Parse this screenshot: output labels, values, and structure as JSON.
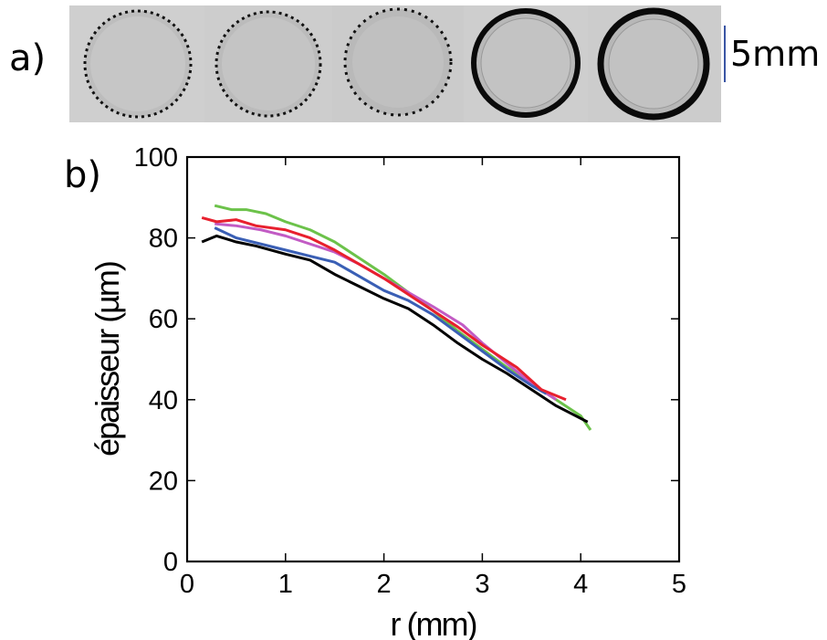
{
  "panel_a": {
    "label": "a)",
    "scale_text": "5mm",
    "scale_color": "#3a55a4"
  },
  "panel_b": {
    "label": "b)"
  },
  "colors": {
    "black": "#000000",
    "blue": "#3a5fb5",
    "magenta": "#c25bc4",
    "red": "#e8202e",
    "green": "#6cc24a"
  },
  "chart_data": {
    "type": "line",
    "xlabel": "r (mm)",
    "ylabel": "épaisseur (µm)",
    "xlim": [
      0,
      5
    ],
    "ylim": [
      0,
      100
    ],
    "xticks": [
      0,
      1,
      2,
      3,
      4,
      5
    ],
    "yticks": [
      0,
      20,
      40,
      60,
      80,
      100
    ],
    "grid": false,
    "series": [
      {
        "color": "#6cc24a",
        "x": [
          0.28,
          0.45,
          0.6,
          0.8,
          1.0,
          1.25,
          1.5,
          1.75,
          2.0,
          2.25,
          2.5,
          2.75,
          3.0,
          3.25,
          3.5,
          3.75,
          4.0,
          4.1
        ],
        "y": [
          88,
          87,
          87,
          86,
          84,
          82,
          79,
          75,
          71,
          66.5,
          62,
          57,
          52.5,
          48,
          44,
          40,
          36,
          32.5
        ]
      },
      {
        "color": "#c25bc4",
        "x": [
          0.28,
          0.5,
          0.75,
          1.0,
          1.25,
          1.5,
          1.75,
          2.0,
          2.25,
          2.5,
          2.8,
          3.0,
          3.25,
          3.5,
          3.75
        ],
        "y": [
          83.5,
          83,
          82,
          80.5,
          78.5,
          76.5,
          73.5,
          70,
          66.5,
          63,
          58.5,
          54,
          49,
          44,
          40
        ]
      },
      {
        "color": "#3a5fb5",
        "x": [
          0.28,
          0.5,
          0.75,
          1.0,
          1.25,
          1.5,
          1.75,
          2.0,
          2.25,
          2.5,
          2.75,
          3.0,
          3.25,
          3.5,
          3.65
        ],
        "y": [
          82.5,
          80,
          78.5,
          77,
          75.5,
          74,
          70.5,
          67,
          64.5,
          61,
          56.5,
          52,
          47.5,
          43.5,
          41.5
        ]
      },
      {
        "color": "#e8202e",
        "x": [
          0.15,
          0.3,
          0.5,
          0.7,
          1.0,
          1.25,
          1.5,
          1.75,
          2.0,
          2.25,
          2.5,
          2.75,
          3.0,
          3.35,
          3.6,
          3.85
        ],
        "y": [
          85,
          84,
          84.5,
          83,
          82,
          80,
          77,
          73.5,
          70,
          66,
          62,
          58,
          53.5,
          48,
          42.5,
          40
        ]
      },
      {
        "color": "#000000",
        "x": [
          0.15,
          0.3,
          0.5,
          0.7,
          1.0,
          1.25,
          1.5,
          1.75,
          2.0,
          2.25,
          2.5,
          2.75,
          3.0,
          3.25,
          3.5,
          3.75,
          4.07
        ],
        "y": [
          79,
          80.5,
          79,
          78,
          76,
          74.5,
          71,
          68,
          65,
          62.5,
          58.5,
          54,
          50,
          46.5,
          42.5,
          38.5,
          34.5
        ]
      }
    ]
  }
}
